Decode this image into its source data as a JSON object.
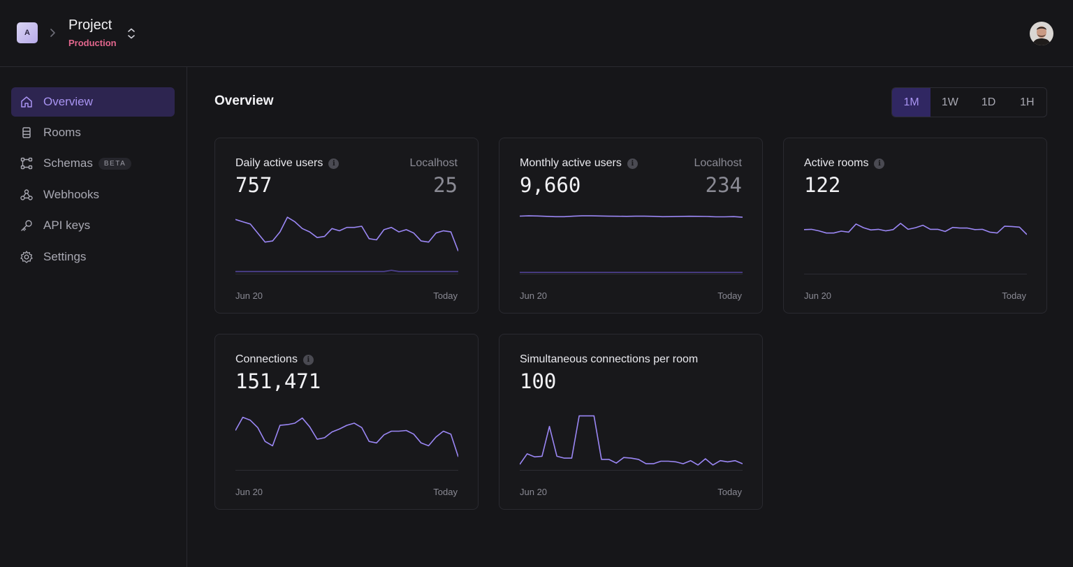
{
  "header": {
    "org_initial": "A",
    "project_name": "Project",
    "environment": "Production"
  },
  "sidebar": {
    "items": [
      {
        "label": "Overview",
        "icon": "home-icon",
        "active": true
      },
      {
        "label": "Rooms",
        "icon": "rooms-icon",
        "active": false
      },
      {
        "label": "Schemas",
        "icon": "schemas-icon",
        "active": false,
        "badge": "BETA"
      },
      {
        "label": "Webhooks",
        "icon": "webhooks-icon",
        "active": false
      },
      {
        "label": "API keys",
        "icon": "key-icon",
        "active": false
      },
      {
        "label": "Settings",
        "icon": "gear-icon",
        "active": false
      }
    ]
  },
  "main": {
    "title": "Overview",
    "ranges": [
      {
        "label": "1M",
        "active": true
      },
      {
        "label": "1W",
        "active": false
      },
      {
        "label": "1D",
        "active": false
      },
      {
        "label": "1H",
        "active": false
      }
    ]
  },
  "colors": {
    "accent": "#9b87f5",
    "accent_dim": "#4b3f8c",
    "environment": "#e2668d"
  },
  "chart_data": [
    {
      "type": "line",
      "title": "Daily active users",
      "value": "757",
      "sublabel": "Localhost",
      "subvalue": "25",
      "x_start": "Jun 20",
      "x_end": "Today",
      "series": [
        {
          "name": "",
          "values": [
            48,
            46,
            44,
            36,
            28,
            29,
            37,
            50,
            46,
            40,
            37,
            32,
            33,
            40,
            38,
            41,
            41,
            42,
            31,
            30,
            39,
            41,
            37,
            39,
            36,
            29,
            28,
            36,
            38,
            37,
            20
          ]
        },
        {
          "name": "Localhost",
          "values": [
            2,
            2,
            2,
            2,
            2,
            2,
            2,
            2,
            2,
            2,
            2,
            2,
            2,
            2,
            2,
            2,
            2,
            2,
            2,
            2,
            2,
            3,
            2,
            2,
            2,
            2,
            2,
            2,
            2,
            2,
            2
          ]
        }
      ],
      "ylim": [
        0,
        55
      ]
    },
    {
      "type": "line",
      "title": "Monthly active users",
      "value": "9,660",
      "sublabel": "Localhost",
      "subvalue": "234",
      "x_start": "Jun 20",
      "x_end": "Today",
      "series": [
        {
          "name": "",
          "values": [
            10200,
            10240,
            10220,
            10160,
            10100,
            10100,
            10180,
            10240,
            10250,
            10220,
            10180,
            10170,
            10160,
            10180,
            10180,
            10160,
            10100,
            10110,
            10150,
            10170,
            10160,
            10130,
            10070,
            10070,
            10110,
            10000
          ]
        },
        {
          "name": "Localhost",
          "values": [
            240,
            240,
            240,
            240,
            240,
            240,
            240,
            240,
            240,
            240,
            240,
            240,
            240,
            240,
            240,
            240,
            240,
            240,
            240,
            240,
            240,
            240,
            240,
            240,
            240,
            234
          ]
        }
      ],
      "ylim": [
        0,
        11000
      ]
    },
    {
      "type": "line",
      "title": "Active rooms",
      "value": "122",
      "x_start": "Jun 20",
      "x_end": "Today",
      "series": [
        {
          "name": "",
          "values": [
            142,
            143,
            138,
            131,
            131,
            137,
            134,
            160,
            148,
            141,
            143,
            138,
            142,
            162,
            143,
            148,
            156,
            143,
            143,
            136,
            149,
            147,
            147,
            142,
            143,
            134,
            131,
            153,
            152,
            150,
            126
          ]
        }
      ],
      "ylim": [
        0,
        200
      ]
    },
    {
      "type": "line",
      "title": "Connections",
      "value": "151,471",
      "x_start": "Jun 20",
      "x_end": "Today",
      "series": [
        {
          "name": "",
          "values": [
            5400,
            7200,
            6800,
            5800,
            3900,
            3300,
            6100,
            6200,
            6400,
            7100,
            5900,
            4200,
            4400,
            5200,
            5600,
            6100,
            6400,
            5800,
            3900,
            3700,
            4800,
            5300,
            5300,
            5400,
            4900,
            3700,
            3300,
            4500,
            5300,
            4900,
            1800
          ]
        }
      ],
      "ylim": [
        0,
        8500
      ]
    },
    {
      "type": "line",
      "title": "Simultaneous connections per room",
      "value": "100",
      "x_start": "Jun 20",
      "x_end": "Today",
      "series": [
        {
          "name": "",
          "values": [
            9,
            26,
            21,
            22,
            70,
            22,
            19,
            19,
            87,
            87,
            87,
            17,
            17,
            11,
            20,
            19,
            17,
            10,
            10,
            14,
            14,
            13,
            10,
            15,
            8,
            18,
            8,
            15,
            13,
            15,
            10
          ]
        }
      ],
      "ylim": [
        0,
        100
      ]
    }
  ]
}
